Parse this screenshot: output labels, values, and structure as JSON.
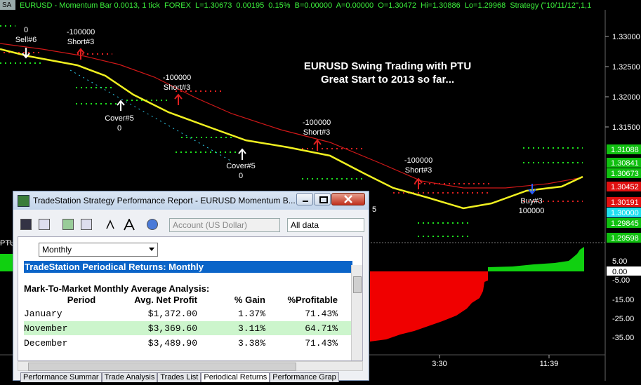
{
  "header": {
    "tab": "SA",
    "info": "EURUSD - Momentum Bar 0.0013, 1 tick  FOREX  L=1.30673  0.00195  0.15%  B=0.00000  A=0.00000  O=1.30472  Hi=1.30886  Lo=1.29968  Strategy (\"10/11/12\",1,1"
  },
  "chart": {
    "title_lines": [
      "EURUSD Swing Trading with PTU",
      "Great Start to 2013 so far..."
    ],
    "annotations": [
      {
        "lines": [
          "0",
          "Sell#6"
        ]
      },
      {
        "lines": [
          "-100000",
          "Short#3"
        ]
      },
      {
        "lines": [
          "Cover#5",
          "0"
        ]
      },
      {
        "lines": [
          "-100000",
          "Short#3"
        ]
      },
      {
        "lines": [
          "Cover#5",
          "0"
        ]
      },
      {
        "lines": [
          "-100000",
          "Short#3"
        ]
      },
      {
        "lines": [
          "-100000",
          "Short#3"
        ]
      },
      {
        "lines": [
          "Buy#3",
          "100000"
        ]
      },
      {
        "lines": [
          "5"
        ]
      }
    ],
    "indicator_label": "PTU",
    "price_axis": [
      "1.33000",
      "1.32500",
      "1.32000",
      "1.31500"
    ],
    "price_badges": [
      "1.31088",
      "1.30841",
      "1.30673",
      "1.30452",
      "1.30191",
      "1.30000",
      "1.29845",
      "1.29598"
    ],
    "oscillator_axis": [
      "5.00",
      "0.00",
      "-5.00",
      "-15.00",
      "-25.00",
      "-35.00"
    ],
    "time_axis": [
      "3:30",
      "11:39"
    ]
  },
  "report_window": {
    "title": "TradeStation Strategy Performance Report - EURUSD Momentum B...",
    "account_combo": "Account (US Dollar)",
    "range_combo": "All data",
    "period_combo": "Monthly",
    "section_title": "TradeStation Periodical Returns: Monthly",
    "analysis_title": "Mark-To-Market Monthly Average Analysis:",
    "table": {
      "columns": [
        "Period",
        "Avg. Net Profit",
        "% Gain",
        "%Profitable"
      ],
      "rows": [
        [
          "January",
          "$1,372.00",
          "1.37%",
          "71.43%"
        ],
        [
          "November",
          "$3,369.60",
          "3.11%",
          "64.71%"
        ],
        [
          "December",
          "$3,489.90",
          "3.38%",
          "71.43%"
        ]
      ]
    },
    "tabs": [
      "Performance Summar",
      "Trade Analysis",
      "Trades List",
      "Periodical Returns",
      "Performance Grap"
    ]
  }
}
